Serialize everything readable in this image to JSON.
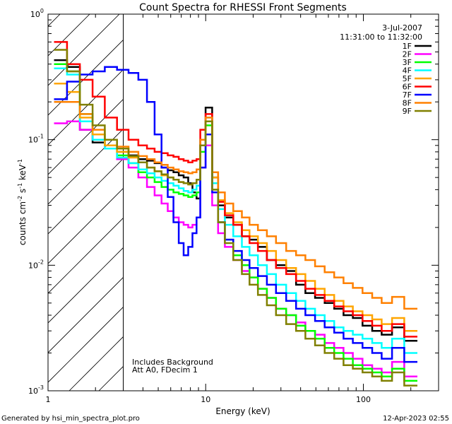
{
  "chart_data": {
    "type": "line",
    "title": "Count Spectra for RHESSI Front Segments",
    "xlabel": "Energy (keV)",
    "ylabel": {
      "base": "counts cm",
      "exp1": "-2",
      "mid": " s",
      "exp2": "-1",
      "unit": " keV",
      "exp3": "-1"
    },
    "xscale": "log",
    "yscale": "log",
    "xlim": [
      1,
      300
    ],
    "ylim": [
      0.001,
      1
    ],
    "x_ticks": [
      {
        "value": 1,
        "label": "1"
      },
      {
        "value": 10,
        "label": "10"
      },
      {
        "value": 100,
        "label": "100"
      }
    ],
    "y_ticks": [
      {
        "value": 0.001,
        "base": "10",
        "exp": "-3"
      },
      {
        "value": 0.01,
        "base": "10",
        "exp": "-2"
      },
      {
        "value": 0.1,
        "base": "10",
        "exp": "-1"
      },
      {
        "value": 1,
        "base": "10",
        "exp": "0"
      }
    ],
    "attenuator_hatch_until": 3,
    "info": {
      "date": "3-Jul-2007",
      "time_range": "11:31:00 to 11:32:00"
    },
    "annotations": [
      "Includes Background",
      "Att A0, FDecim 1"
    ],
    "series": [
      {
        "name": "1F",
        "color": "#000000",
        "values": [
          0.43,
          0.38,
          0.12,
          0.095,
          0.09,
          0.08,
          0.075,
          0.07,
          0.068,
          0.065,
          0.06,
          0.057,
          0.055,
          0.052,
          0.05,
          0.045,
          0.038,
          0.034,
          0.1,
          0.18,
          0.05,
          0.03,
          0.024,
          0.021,
          0.017,
          0.016,
          0.014,
          0.011,
          0.01,
          0.009,
          0.007,
          0.006,
          0.0055,
          0.005,
          0.0045,
          0.004,
          0.0038,
          0.0033,
          0.003,
          0.0028,
          0.0032,
          0.0025
        ]
      },
      {
        "name": "2F",
        "color": "#ff00ff",
        "values": [
          0.135,
          0.14,
          0.12,
          0.1,
          0.085,
          0.07,
          0.06,
          0.05,
          0.042,
          0.036,
          0.031,
          0.027,
          0.024,
          0.022,
          0.021,
          0.02,
          0.021,
          0.024,
          0.06,
          0.09,
          0.03,
          0.018,
          0.014,
          0.011,
          0.009,
          0.008,
          0.0065,
          0.0055,
          0.0045,
          0.004,
          0.0035,
          0.003,
          0.0028,
          0.0024,
          0.0022,
          0.002,
          0.0018,
          0.0016,
          0.0015,
          0.0014,
          0.0017,
          0.0013
        ]
      },
      {
        "name": "3F",
        "color": "#00ff00",
        "values": [
          0.4,
          0.35,
          0.16,
          0.11,
          0.09,
          0.075,
          0.065,
          0.055,
          0.05,
          0.046,
          0.042,
          0.04,
          0.038,
          0.037,
          0.036,
          0.035,
          0.036,
          0.038,
          0.08,
          0.13,
          0.04,
          0.022,
          0.016,
          0.012,
          0.01,
          0.008,
          0.0065,
          0.0055,
          0.0045,
          0.004,
          0.0033,
          0.003,
          0.0026,
          0.0022,
          0.002,
          0.0018,
          0.0016,
          0.0015,
          0.0014,
          0.0013,
          0.0015,
          0.0012
        ]
      },
      {
        "name": "4F",
        "color": "#00ffff",
        "values": [
          0.37,
          0.33,
          0.14,
          0.1,
          0.085,
          0.072,
          0.065,
          0.058,
          0.054,
          0.05,
          0.047,
          0.045,
          0.043,
          0.041,
          0.039,
          0.038,
          0.04,
          0.043,
          0.1,
          0.15,
          0.045,
          0.028,
          0.021,
          0.017,
          0.014,
          0.012,
          0.01,
          0.0085,
          0.007,
          0.006,
          0.0052,
          0.0045,
          0.004,
          0.0036,
          0.0032,
          0.003,
          0.0028,
          0.0026,
          0.0024,
          0.0022,
          0.0026,
          0.002
        ]
      },
      {
        "name": "5F",
        "color": "#ffa500",
        "values": [
          0.28,
          0.24,
          0.15,
          0.11,
          0.09,
          0.08,
          0.072,
          0.066,
          0.06,
          0.056,
          0.052,
          0.05,
          0.048,
          0.046,
          0.045,
          0.044,
          0.045,
          0.048,
          0.09,
          0.14,
          0.05,
          0.033,
          0.026,
          0.022,
          0.019,
          0.017,
          0.015,
          0.013,
          0.011,
          0.0095,
          0.0085,
          0.0075,
          0.0065,
          0.0058,
          0.0052,
          0.0047,
          0.0043,
          0.004,
          0.0037,
          0.0034,
          0.0038,
          0.003
        ]
      },
      {
        "name": "6F",
        "color": "#ff0000",
        "values": [
          0.6,
          0.4,
          0.3,
          0.22,
          0.15,
          0.12,
          0.1,
          0.09,
          0.085,
          0.08,
          0.078,
          0.075,
          0.073,
          0.07,
          0.068,
          0.066,
          0.068,
          0.07,
          0.12,
          0.16,
          0.055,
          0.032,
          0.025,
          0.021,
          0.017,
          0.015,
          0.013,
          0.011,
          0.0095,
          0.0085,
          0.0075,
          0.0065,
          0.0058,
          0.0052,
          0.0047,
          0.0043,
          0.004,
          0.0036,
          0.0033,
          0.003,
          0.0034,
          0.0027
        ]
      },
      {
        "name": "7F",
        "color": "#0000ff",
        "values": [
          0.21,
          0.29,
          0.33,
          0.35,
          0.38,
          0.36,
          0.34,
          0.3,
          0.2,
          0.11,
          0.06,
          0.035,
          0.022,
          0.015,
          0.012,
          0.014,
          0.018,
          0.024,
          0.06,
          0.11,
          0.038,
          0.022,
          0.016,
          0.013,
          0.011,
          0.0095,
          0.0082,
          0.007,
          0.006,
          0.0052,
          0.0045,
          0.004,
          0.0036,
          0.0032,
          0.0029,
          0.0026,
          0.0024,
          0.0022,
          0.002,
          0.0018,
          0.0022,
          0.0017
        ]
      },
      {
        "name": "8F",
        "color": "#ff8000",
        "values": [
          0.2,
          0.2,
          0.16,
          0.12,
          0.1,
          0.088,
          0.08,
          0.074,
          0.07,
          0.066,
          0.063,
          0.06,
          0.058,
          0.056,
          0.055,
          0.054,
          0.055,
          0.058,
          0.1,
          0.15,
          0.055,
          0.038,
          0.031,
          0.027,
          0.024,
          0.021,
          0.019,
          0.017,
          0.015,
          0.013,
          0.012,
          0.011,
          0.0098,
          0.0088,
          0.008,
          0.0072,
          0.0066,
          0.006,
          0.0055,
          0.005,
          0.0056,
          0.0045
        ]
      },
      {
        "name": "9F",
        "color": "#808000",
        "values": [
          0.52,
          0.35,
          0.19,
          0.13,
          0.1,
          0.085,
          0.074,
          0.066,
          0.06,
          0.056,
          0.053,
          0.05,
          0.048,
          0.046,
          0.045,
          0.044,
          0.045,
          0.048,
          0.09,
          0.14,
          0.04,
          0.022,
          0.015,
          0.011,
          0.0085,
          0.007,
          0.0058,
          0.0048,
          0.004,
          0.0034,
          0.003,
          0.0026,
          0.0023,
          0.002,
          0.0018,
          0.0016,
          0.0015,
          0.0014,
          0.0013,
          0.0012,
          0.0014,
          0.0011
        ]
      }
    ],
    "energy_bins": [
      1.2,
      1.45,
      1.75,
      2.1,
      2.5,
      3.0,
      3.5,
      4.0,
      4.5,
      5.0,
      5.5,
      6.0,
      6.5,
      7.0,
      7.5,
      8.0,
      8.5,
      9.0,
      9.5,
      10.5,
      11.5,
      12.5,
      14.0,
      16.0,
      18.0,
      20.0,
      23.0,
      26.0,
      30.0,
      35.0,
      40.0,
      46.0,
      53.0,
      61.0,
      70.0,
      80.0,
      92.0,
      106.0,
      122.0,
      140.0,
      165.0,
      200.0
    ]
  },
  "footer": {
    "generated_by": "Generated by hsi_min_spectra_plot.pro",
    "timestamp": "12-Apr-2023 02:55"
  }
}
